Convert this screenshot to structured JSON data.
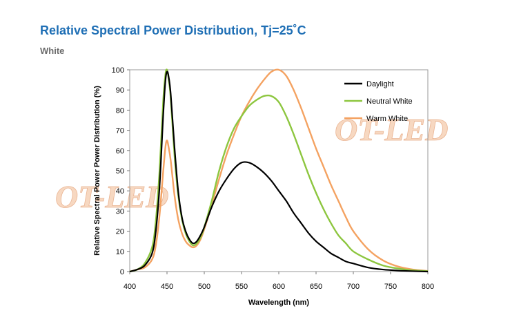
{
  "header": {
    "title": "Relative Spectral Power Distribution, Tj=25˚C",
    "subtitle": "White"
  },
  "watermark": {
    "text": "OT-LED"
  },
  "chart_data": {
    "type": "line",
    "title": "Relative Spectral Power Distribution, Tj=25˚C",
    "subtitle": "White",
    "xlabel": "Wavelength (nm)",
    "ylabel": "Relative Spectral Power Power Distribution (%)",
    "xlim": [
      400,
      800
    ],
    "ylim": [
      0,
      100
    ],
    "xticks": [
      400,
      450,
      500,
      550,
      600,
      650,
      700,
      750,
      800
    ],
    "yticks": [
      0,
      10,
      20,
      30,
      40,
      50,
      60,
      70,
      80,
      90,
      100
    ],
    "grid": false,
    "legend_position": "top-right",
    "series": [
      {
        "name": "Daylight",
        "color": "#000000",
        "x": [
          400,
          410,
          420,
          430,
          435,
          440,
          445,
          448,
          450,
          452,
          455,
          460,
          465,
          470,
          475,
          480,
          485,
          490,
          495,
          500,
          510,
          520,
          530,
          540,
          550,
          560,
          570,
          580,
          590,
          600,
          610,
          620,
          630,
          640,
          650,
          660,
          670,
          680,
          690,
          700,
          720,
          740,
          760,
          780,
          800
        ],
        "y": [
          0,
          1,
          3,
          9,
          20,
          42,
          78,
          95,
          99,
          97,
          88,
          62,
          40,
          27,
          20,
          16,
          14,
          15,
          18,
          22,
          32,
          40,
          46,
          51,
          54,
          54,
          52,
          49,
          45,
          40,
          35,
          29,
          24,
          19,
          15,
          12,
          9,
          7,
          5,
          4,
          2,
          1,
          0.5,
          0.2,
          0
        ]
      },
      {
        "name": "Neutral White",
        "color": "#8dc63f",
        "x": [
          400,
          410,
          420,
          430,
          435,
          440,
          445,
          448,
          450,
          452,
          455,
          460,
          465,
          470,
          475,
          480,
          485,
          490,
          495,
          500,
          510,
          520,
          530,
          540,
          550,
          560,
          570,
          580,
          590,
          600,
          610,
          620,
          630,
          640,
          650,
          660,
          670,
          680,
          690,
          700,
          720,
          740,
          760,
          780,
          800
        ],
        "y": [
          0,
          1,
          4,
          12,
          25,
          50,
          85,
          98,
          100,
          96,
          86,
          58,
          38,
          26,
          19,
          15,
          13,
          14,
          17,
          22,
          35,
          50,
          62,
          71,
          77,
          82,
          85,
          87,
          87,
          84,
          77,
          68,
          58,
          48,
          39,
          31,
          24,
          18,
          14,
          10,
          6,
          3,
          1.5,
          0.6,
          0.2
        ]
      },
      {
        "name": "Warm White",
        "color": "#f4a261",
        "x": [
          400,
          410,
          420,
          430,
          435,
          440,
          445,
          448,
          450,
          452,
          455,
          460,
          465,
          470,
          475,
          480,
          485,
          490,
          495,
          500,
          510,
          520,
          530,
          540,
          550,
          560,
          570,
          580,
          590,
          600,
          610,
          620,
          630,
          640,
          650,
          660,
          670,
          680,
          690,
          700,
          720,
          740,
          760,
          780,
          800
        ],
        "y": [
          0,
          1,
          2,
          6,
          13,
          28,
          50,
          62,
          65,
          62,
          55,
          38,
          26,
          19,
          15,
          13,
          12,
          13,
          16,
          21,
          33,
          46,
          58,
          68,
          77,
          84,
          90,
          95,
          99,
          100,
          97,
          90,
          81,
          71,
          61,
          52,
          43,
          35,
          27,
          20,
          11,
          5.5,
          2.5,
          1,
          0.3
        ]
      }
    ]
  }
}
